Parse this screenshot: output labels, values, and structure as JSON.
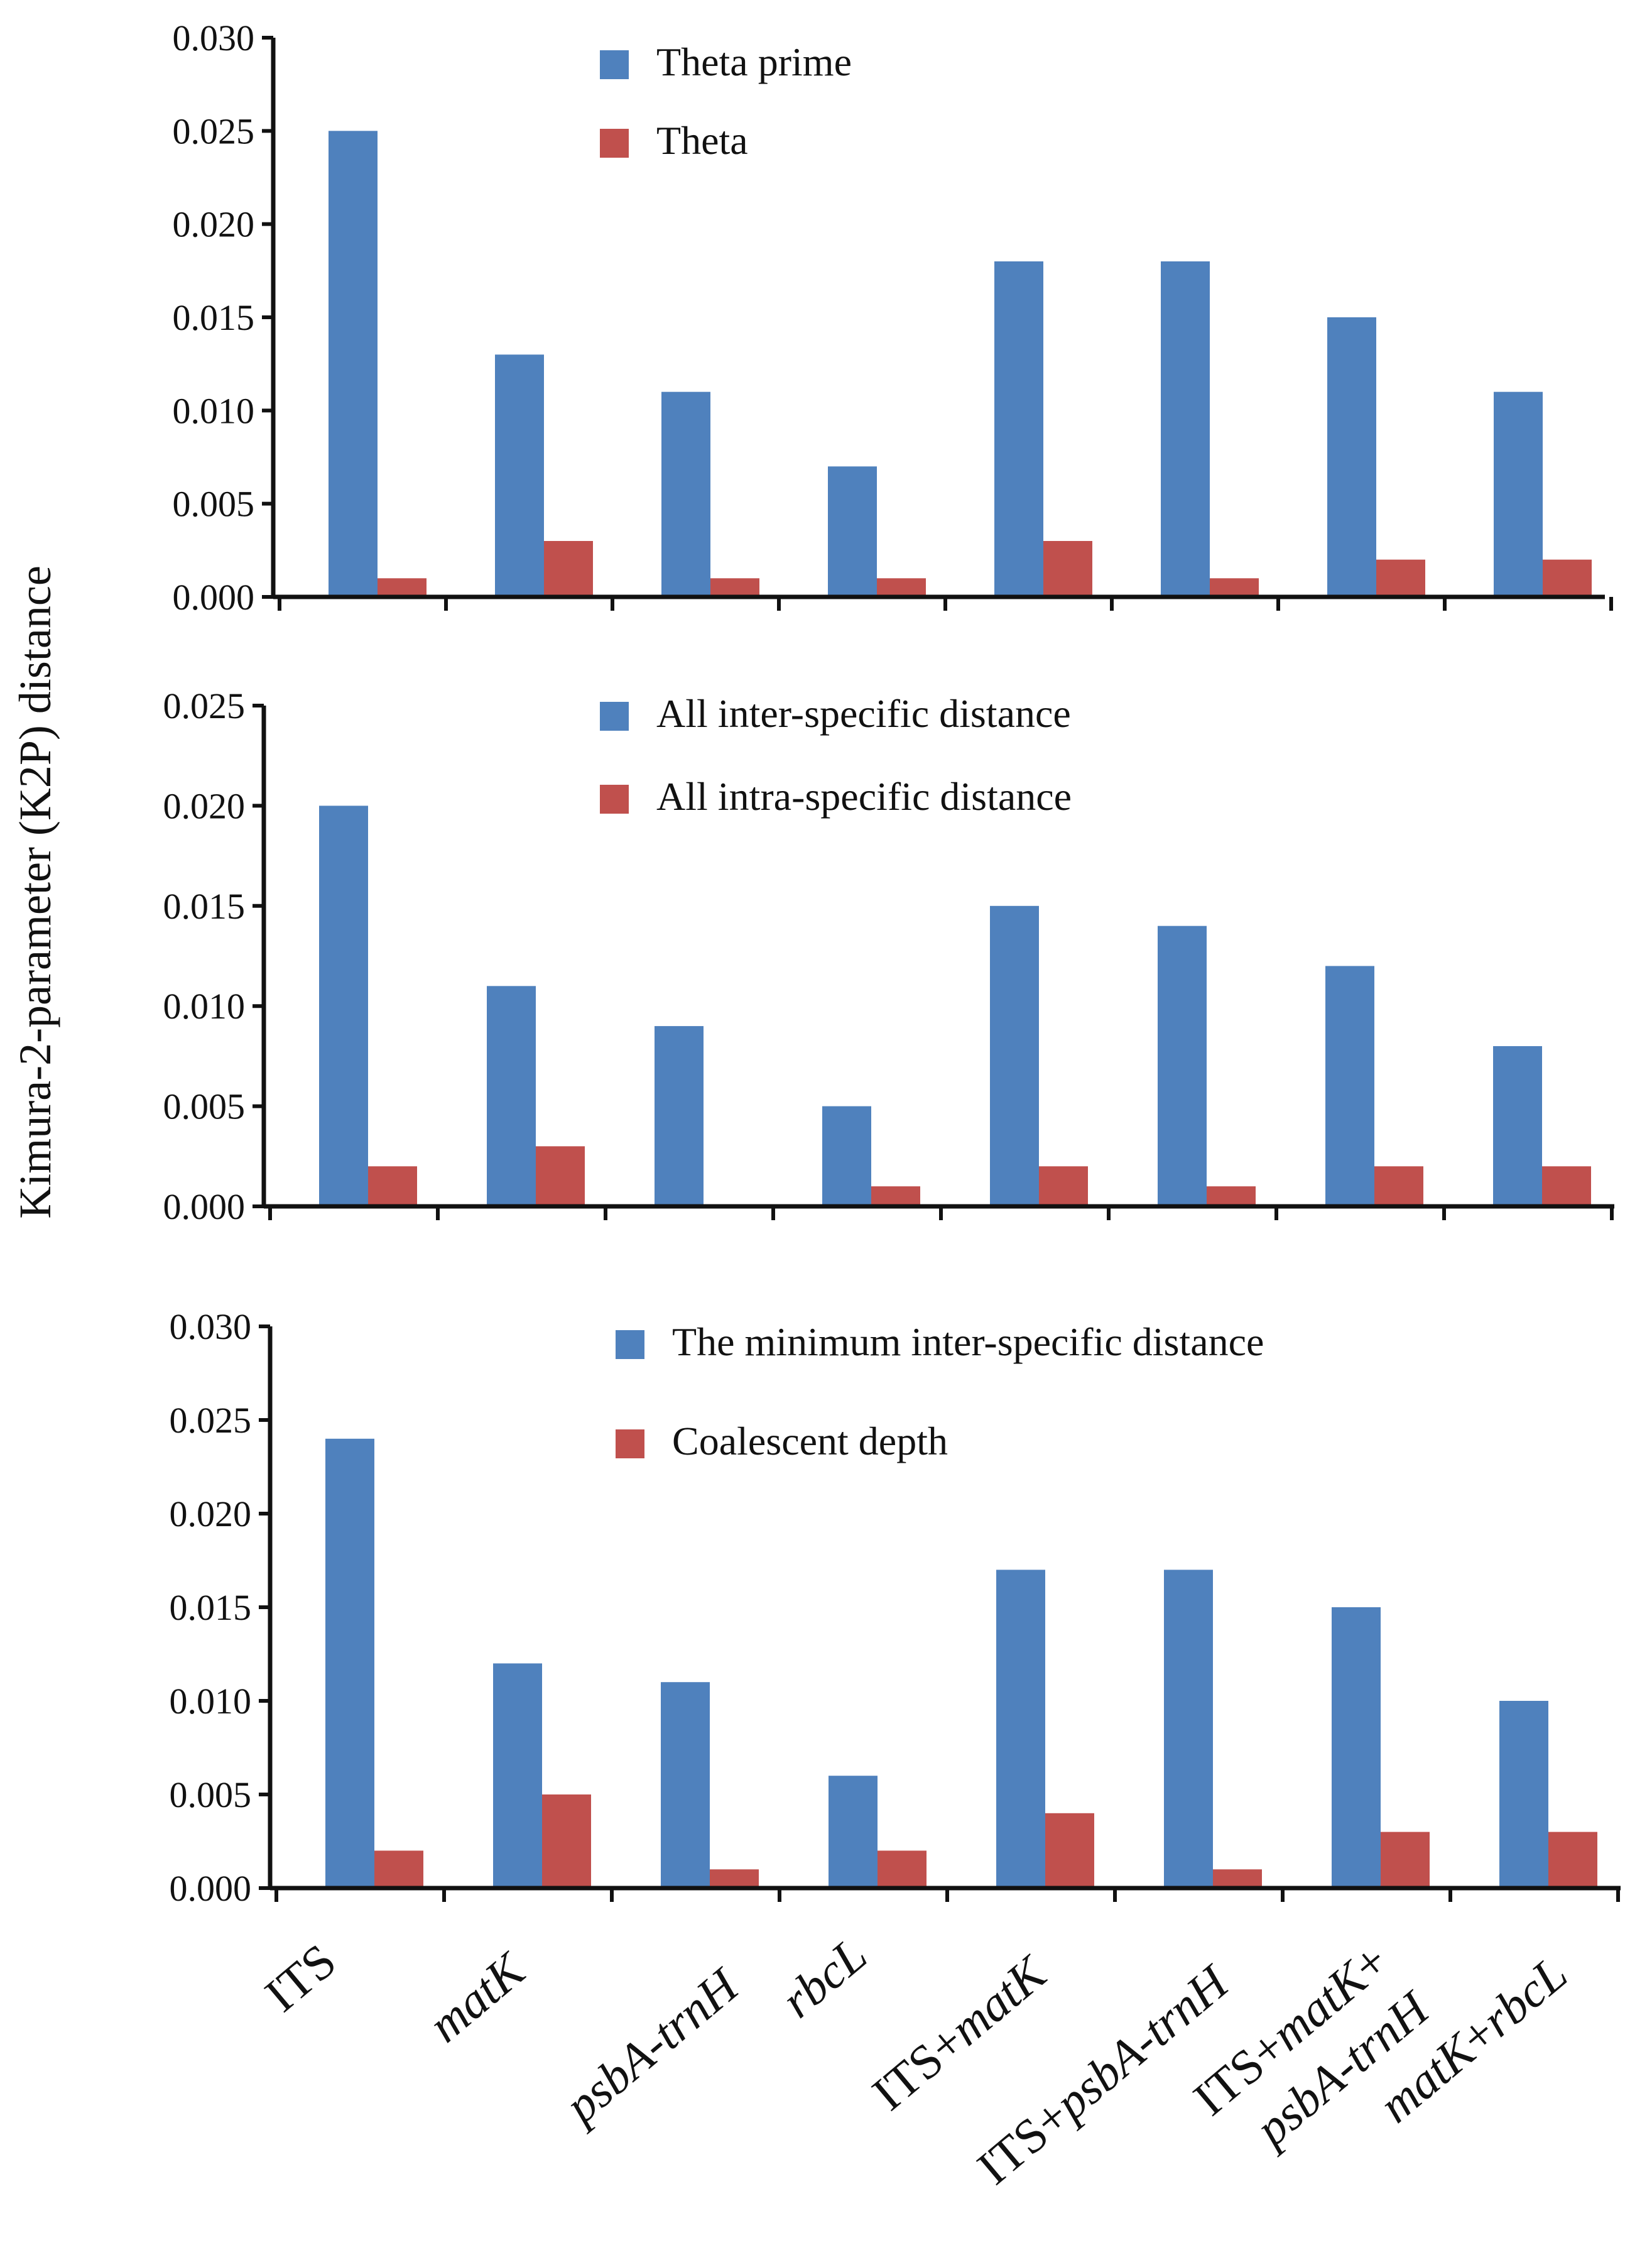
{
  "y_axis_title": "Kimura-2-parameter (K2P) distance",
  "colors": {
    "series_a": "#4f81bd",
    "series_b": "#c0504d",
    "axis": "#111111"
  },
  "chart_data": [
    {
      "type": "bar",
      "panel": "top",
      "categories": [
        "ITS",
        "matK",
        "psbA-trnH",
        "rbcL",
        "ITS+matK",
        "ITS+psbA-trnH",
        "ITS+matK+ psbA-trnH",
        "matK+rbcL"
      ],
      "ylim": [
        0,
        0.03
      ],
      "ytick_labels": [
        "0.000",
        "0.005",
        "0.010",
        "0.015",
        "0.020",
        "0.025",
        "0.030"
      ],
      "series": [
        {
          "name": "Theta prime",
          "values": [
            0.025,
            0.013,
            0.011,
            0.007,
            0.018,
            0.018,
            0.015,
            0.011
          ]
        },
        {
          "name": "Theta",
          "values": [
            0.001,
            0.003,
            0.001,
            0.001,
            0.003,
            0.001,
            0.002,
            0.002
          ]
        }
      ],
      "legend": "top-center"
    },
    {
      "type": "bar",
      "panel": "middle",
      "categories": [
        "ITS",
        "matK",
        "psbA-trnH",
        "rbcL",
        "ITS+matK",
        "ITS+psbA-trnH",
        "ITS+matK+ psbA-trnH",
        "matK+rbcL"
      ],
      "ylim": [
        0,
        0.025
      ],
      "ytick_labels": [
        "0.000",
        "0.005",
        "0.010",
        "0.015",
        "0.020",
        "0.025"
      ],
      "series": [
        {
          "name": "All inter-specific distance",
          "values": [
            0.02,
            0.011,
            0.009,
            0.005,
            0.015,
            0.014,
            0.012,
            0.008
          ]
        },
        {
          "name": "All intra-specific distance",
          "values": [
            0.002,
            0.003,
            0.0,
            0.001,
            0.002,
            0.001,
            0.002,
            0.002
          ]
        }
      ],
      "legend": "top-center"
    },
    {
      "type": "bar",
      "panel": "bottom",
      "categories": [
        "ITS",
        "matK",
        "psbA-trnH",
        "rbcL",
        "ITS+matK",
        "ITS+psbA-trnH",
        "ITS+matK+ psbA-trnH",
        "matK+rbcL"
      ],
      "ylim": [
        0,
        0.03
      ],
      "ytick_labels": [
        "0.000",
        "0.005",
        "0.010",
        "0.015",
        "0.020",
        "0.025",
        "0.030"
      ],
      "series": [
        {
          "name": "The minimum inter-specific distance",
          "values": [
            0.024,
            0.012,
            0.011,
            0.006,
            0.017,
            0.017,
            0.015,
            0.01
          ]
        },
        {
          "name": "Coalescent depth",
          "values": [
            0.002,
            0.005,
            0.001,
            0.002,
            0.004,
            0.001,
            0.003,
            0.003
          ]
        }
      ],
      "legend": "top-center"
    }
  ],
  "x_labels": [
    {
      "parts": [
        {
          "text": "ITS",
          "italic": false
        }
      ]
    },
    {
      "parts": [
        {
          "text": "matK",
          "italic": true
        }
      ]
    },
    {
      "parts": [
        {
          "text": "psbA-trnH",
          "italic": true
        }
      ]
    },
    {
      "parts": [
        {
          "text": "rbcL",
          "italic": true
        }
      ]
    },
    {
      "parts": [
        {
          "text": "ITS+",
          "italic": false
        },
        {
          "text": "matK",
          "italic": true
        }
      ]
    },
    {
      "parts": [
        {
          "text": "ITS+",
          "italic": false
        },
        {
          "text": "psbA-trnH",
          "italic": true
        }
      ]
    },
    {
      "parts": [
        {
          "text": "ITS+",
          "italic": false
        },
        {
          "text": "matK",
          "italic": true
        },
        {
          "text": "+",
          "italic": false
        }
      ],
      "line2": [
        {
          "text": "psbA-trnH",
          "italic": true
        }
      ]
    },
    {
      "parts": [
        {
          "text": "matK",
          "italic": true
        },
        {
          "text": "+",
          "italic": false
        },
        {
          "text": "rbcL",
          "italic": true
        }
      ]
    }
  ]
}
